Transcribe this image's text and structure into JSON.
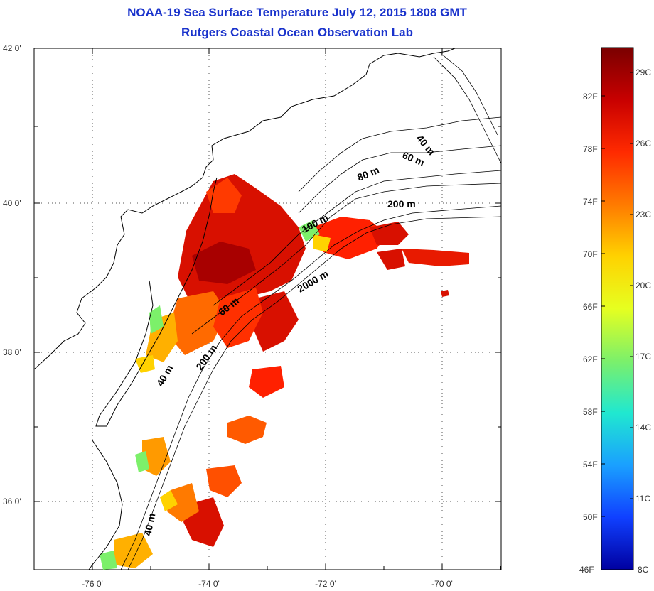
{
  "title_line1": "NOAA-19 Sea Surface Temperature July 12, 2015 1808 GMT",
  "title_line2": "Rutgers Coastal Ocean Observation Lab",
  "map": {
    "lon_ticks": [
      "-76 0'",
      "-74 0'",
      "-72 0'",
      "-70 0'"
    ],
    "lat_ticks": [
      "42 0'",
      "40 0'",
      "38 0'",
      "36 0'"
    ],
    "contour_labels": [
      "40 m",
      "60 m",
      "80 m",
      "200 m",
      "100 m",
      "2000 m",
      "60 m",
      "200 m",
      "40 m",
      "40 m"
    ],
    "grid": "dotted"
  },
  "colorbar": {
    "fahrenheit_labels": [
      "82F",
      "78F",
      "74F",
      "70F",
      "66F",
      "62F",
      "58F",
      "54F",
      "50F",
      "46F"
    ],
    "celsius_labels": [
      "29C",
      "26C",
      "23C",
      "20C",
      "17C",
      "14C",
      "11C",
      "8C"
    ],
    "colors_top_to_bottom": [
      "#7a0000",
      "#c80000",
      "#ff2a00",
      "#ff7a00",
      "#ffd200",
      "#e6ff20",
      "#7cf06a",
      "#20e8d0",
      "#1aa0ff",
      "#1040ff",
      "#0000a0"
    ]
  }
}
